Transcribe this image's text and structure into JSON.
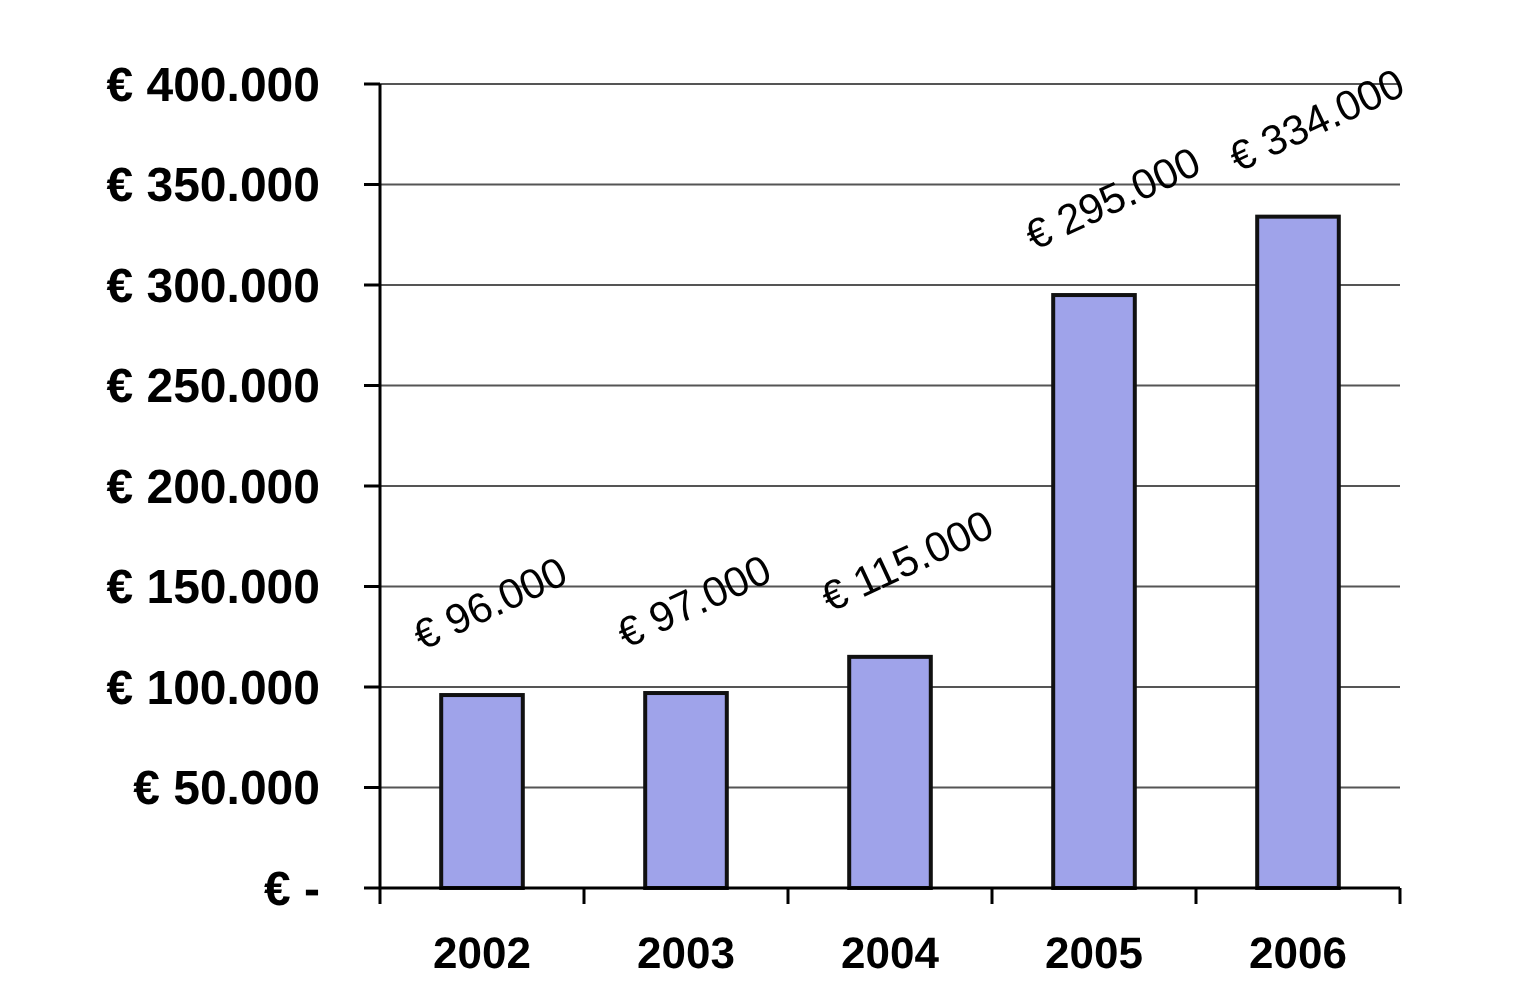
{
  "chart_data": {
    "type": "bar",
    "categories": [
      "2002",
      "2003",
      "2004",
      "2005",
      "2006"
    ],
    "values": [
      96000,
      97000,
      115000,
      295000,
      334000
    ],
    "value_labels": [
      "€ 96.000",
      "€ 97.000",
      "€ 115.000",
      "€ 295.000",
      "€ 334.000"
    ],
    "color": "#9fa3ea",
    "ylim": [
      0,
      400000
    ],
    "yticks": [
      {
        "value": 0,
        "label": "€ -"
      },
      {
        "value": 50000,
        "label": "€ 50.000"
      },
      {
        "value": 100000,
        "label": "€ 100.000"
      },
      {
        "value": 150000,
        "label": "€ 150.000"
      },
      {
        "value": 200000,
        "label": "€ 200.000"
      },
      {
        "value": 250000,
        "label": "€ 250.000"
      },
      {
        "value": 300000,
        "label": "€ 300.000"
      },
      {
        "value": 350000,
        "label": "€ 350.000"
      },
      {
        "value": 400000,
        "label": "€ 400.000"
      }
    ],
    "grid": "y"
  }
}
